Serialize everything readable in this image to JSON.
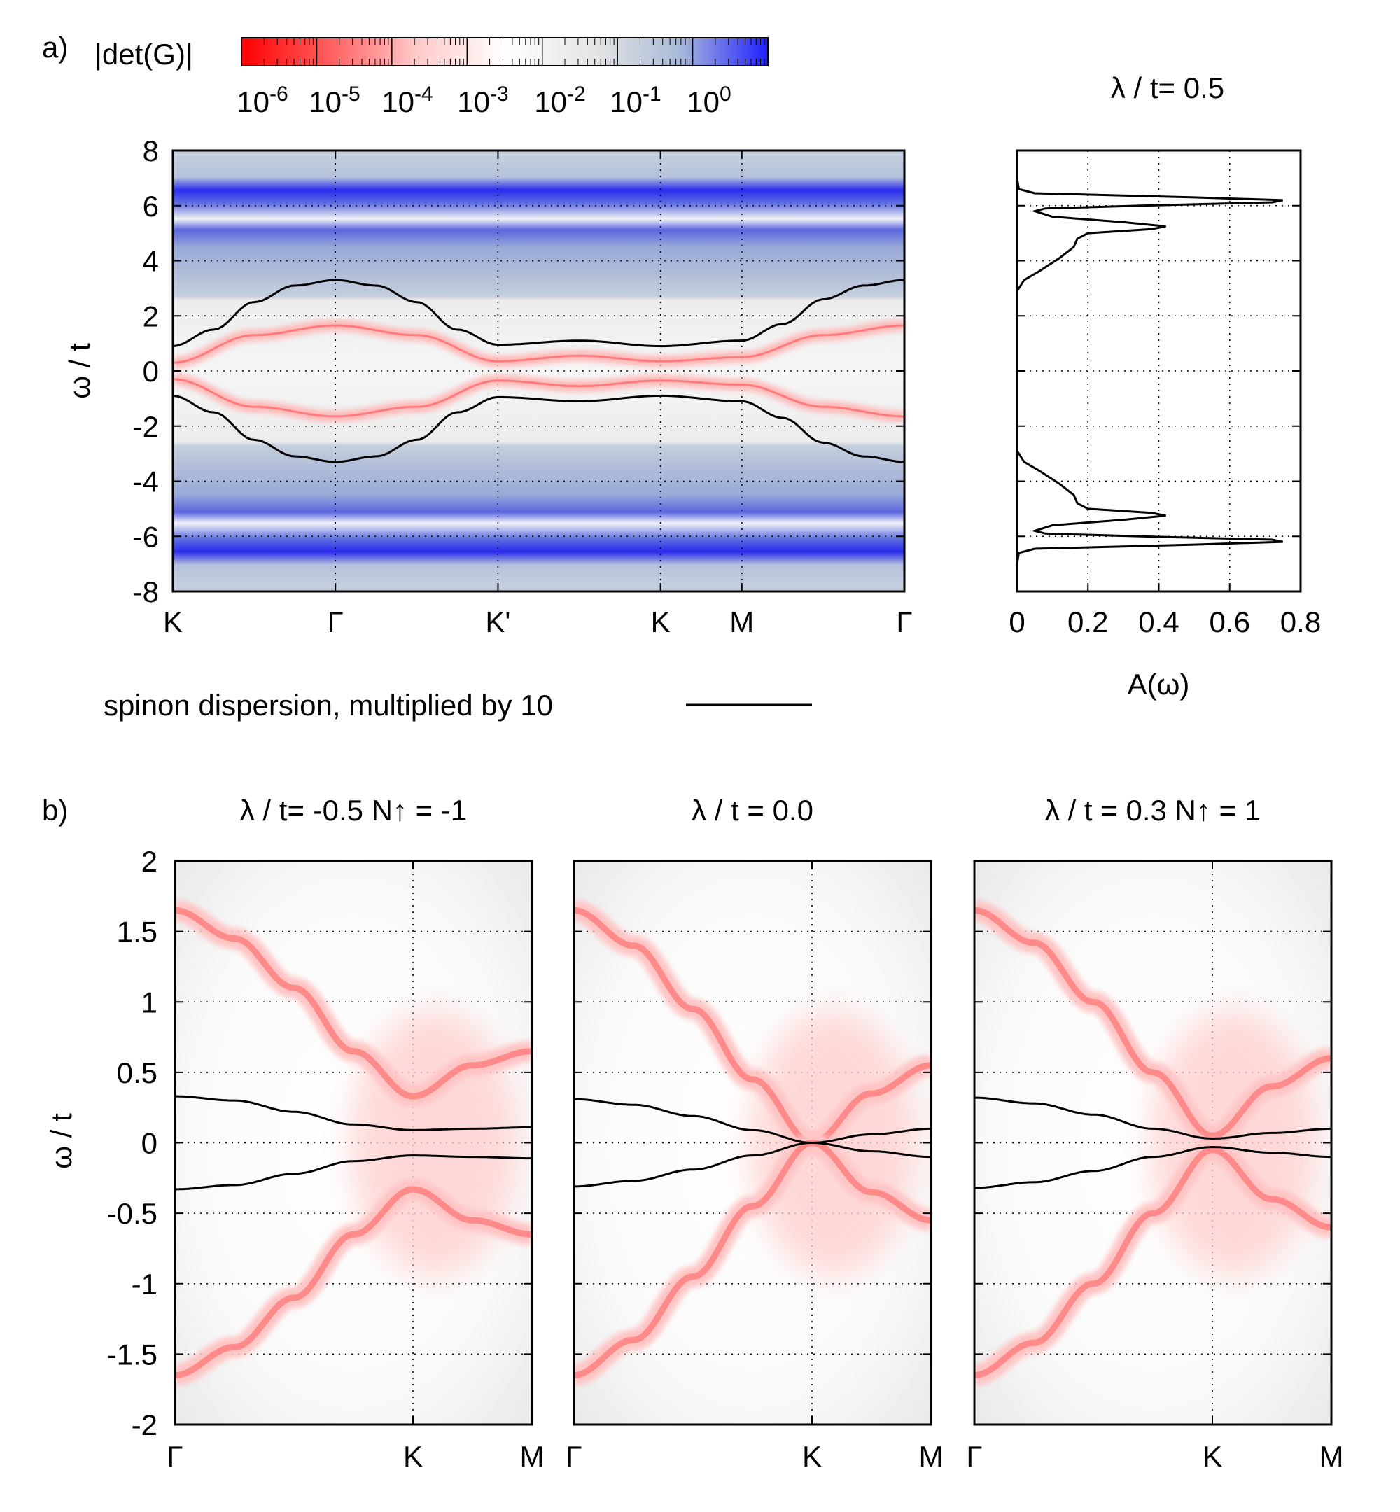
{
  "panel_a": {
    "label": "a)",
    "colorbar": {
      "title": "|det(G)|",
      "ticks": [
        "10^-6",
        "10^-5",
        "10^-4",
        "10^-3",
        "10^-2",
        "10^-1",
        "10^0"
      ],
      "colors": [
        "#ff0000",
        "#ff8080",
        "#ffe0e0",
        "#ffffff",
        "#e6e6e6",
        "#b4c4dc",
        "#2a2aff"
      ]
    },
    "legend": "spinon dispersion, multiplied by 10",
    "right_title": "λ / t= 0.5"
  },
  "panel_b": {
    "label": "b)"
  },
  "chart_data": [
    {
      "id": "a-band",
      "type": "heatmap",
      "title": "",
      "ylabel": "ω / t",
      "ylim": [
        -8,
        8
      ],
      "yticks": [
        -8,
        -6,
        -4,
        -2,
        0,
        2,
        4,
        6,
        8
      ],
      "xticks": [
        "K",
        "Γ",
        "K'",
        "K",
        "M",
        "Γ"
      ],
      "xtick_pos": [
        0,
        1,
        2,
        3,
        3.5,
        4.5
      ],
      "xlim": [
        0,
        4.5
      ],
      "grid": true,
      "series": [
        {
          "name": "spinon dispersion x10 (upper)",
          "x": [
            0,
            0.25,
            0.5,
            0.75,
            1,
            1.25,
            1.5,
            1.75,
            2,
            2.5,
            3,
            3.5,
            3.75,
            4,
            4.25,
            4.5
          ],
          "values": [
            0.9,
            1.5,
            2.5,
            3.1,
            3.3,
            3.1,
            2.5,
            1.5,
            0.95,
            1.1,
            0.9,
            1.1,
            1.7,
            2.6,
            3.1,
            3.3
          ]
        },
        {
          "name": "spinon dispersion x10 (lower)",
          "x": [
            0,
            0.25,
            0.5,
            0.75,
            1,
            1.25,
            1.5,
            1.75,
            2,
            2.5,
            3,
            3.5,
            3.75,
            4,
            4.25,
            4.5
          ],
          "values": [
            -0.9,
            -1.5,
            -2.5,
            -3.1,
            -3.3,
            -3.1,
            -2.5,
            -1.5,
            -0.95,
            -1.1,
            -0.9,
            -1.1,
            -1.7,
            -2.6,
            -3.1,
            -3.3
          ]
        },
        {
          "name": "red band upper",
          "x": [
            0,
            0.5,
            1,
            1.5,
            2,
            2.5,
            3,
            3.5,
            4,
            4.5
          ],
          "values": [
            0.3,
            1.3,
            1.65,
            1.3,
            0.35,
            0.55,
            0.35,
            0.5,
            1.3,
            1.65
          ]
        },
        {
          "name": "red band lower",
          "x": [
            0,
            0.5,
            1,
            1.5,
            2,
            2.5,
            3,
            3.5,
            4,
            4.5
          ],
          "values": [
            -0.3,
            -1.3,
            -1.65,
            -1.3,
            -0.35,
            -0.55,
            -0.35,
            -0.5,
            -1.3,
            -1.65
          ]
        }
      ]
    },
    {
      "id": "a-dos",
      "type": "line",
      "title": "λ / t= 0.5",
      "xlabel": "A(ω)",
      "xlim": [
        0,
        0.8
      ],
      "ylim": [
        -8,
        8
      ],
      "xticks": [
        0,
        0.2,
        0.4,
        0.6,
        0.8
      ],
      "grid": true,
      "series": [
        {
          "name": "A(ω)",
          "w": [
            -8,
            -7,
            -6.6,
            -6.45,
            -6.3,
            -6.2,
            -6.12,
            -6.0,
            -5.9,
            -5.8,
            -5.6,
            -5.4,
            -5.25,
            -5.15,
            -5.0,
            -4.8,
            -4.5,
            -4.1,
            -3.6,
            -3.3,
            -3.0,
            -2.9,
            -2.8,
            0,
            2.8,
            2.9,
            3.0,
            3.3,
            3.6,
            4.1,
            4.5,
            4.8,
            5.0,
            5.15,
            5.25,
            5.4,
            5.6,
            5.8,
            5.9,
            6.0,
            6.12,
            6.2,
            6.3,
            6.45,
            6.6,
            7,
            8
          ],
          "values": [
            0,
            0,
            0.005,
            0.05,
            0.5,
            0.75,
            0.72,
            0.35,
            0.08,
            0.05,
            0.1,
            0.3,
            0.42,
            0.38,
            0.2,
            0.17,
            0.16,
            0.12,
            0.06,
            0.02,
            0.005,
            0,
            0,
            0,
            0,
            0,
            0.005,
            0.02,
            0.06,
            0.12,
            0.16,
            0.17,
            0.2,
            0.38,
            0.42,
            0.3,
            0.1,
            0.05,
            0.08,
            0.35,
            0.72,
            0.75,
            0.5,
            0.05,
            0.005,
            0,
            0
          ]
        }
      ]
    },
    {
      "id": "b1",
      "type": "heatmap",
      "title": "λ / t= -0.5   N↑ = -1",
      "ylabel": "ω / t",
      "ylim": [
        -2,
        2
      ],
      "yticks": [
        "-2",
        "-1.5",
        "-1",
        "-0.5",
        "0",
        "0.5",
        "1",
        "1.5",
        "2"
      ],
      "xticks": [
        "Γ",
        "K",
        "M"
      ],
      "xtick_pos": [
        0,
        2,
        3
      ],
      "xlim": [
        0,
        3
      ],
      "gap": 0.35,
      "spinon_end": 0.11,
      "band_end": 0.65,
      "series": [
        {
          "name": "red band upper",
          "x": [
            0,
            0.5,
            1,
            1.5,
            2,
            2.5,
            3
          ],
          "values": [
            1.65,
            1.45,
            1.1,
            0.65,
            0.33,
            0.55,
            0.65
          ]
        },
        {
          "name": "red band lower",
          "x": [
            0,
            0.5,
            1,
            1.5,
            2,
            2.5,
            3
          ],
          "values": [
            -1.65,
            -1.45,
            -1.1,
            -0.65,
            -0.33,
            -0.55,
            -0.65
          ]
        },
        {
          "name": "spinon upper",
          "x": [
            0,
            0.5,
            1,
            1.5,
            2,
            2.5,
            3
          ],
          "values": [
            0.33,
            0.3,
            0.22,
            0.13,
            0.09,
            0.1,
            0.11
          ]
        },
        {
          "name": "spinon lower",
          "x": [
            0,
            0.5,
            1,
            1.5,
            2,
            2.5,
            3
          ],
          "values": [
            -0.33,
            -0.3,
            -0.22,
            -0.13,
            -0.09,
            -0.1,
            -0.11
          ]
        }
      ]
    },
    {
      "id": "b2",
      "type": "heatmap",
      "title": "λ / t = 0.0",
      "ylim": [
        -2,
        2
      ],
      "xticks": [
        "Γ",
        "K",
        "M"
      ],
      "xtick_pos": [
        0,
        2,
        3
      ],
      "xlim": [
        0,
        3
      ],
      "series": [
        {
          "name": "red band upper",
          "x": [
            0,
            0.5,
            1,
            1.5,
            2,
            2.5,
            3
          ],
          "values": [
            1.65,
            1.4,
            0.95,
            0.45,
            0.0,
            0.35,
            0.55
          ]
        },
        {
          "name": "red band lower",
          "x": [
            0,
            0.5,
            1,
            1.5,
            2,
            2.5,
            3
          ],
          "values": [
            -1.65,
            -1.4,
            -0.95,
            -0.45,
            0.0,
            -0.35,
            -0.55
          ]
        },
        {
          "name": "spinon upper",
          "x": [
            0,
            0.5,
            1,
            1.5,
            2,
            2.5,
            3
          ],
          "values": [
            0.31,
            0.27,
            0.19,
            0.09,
            0.0,
            0.06,
            0.1
          ]
        },
        {
          "name": "spinon lower",
          "x": [
            0,
            0.5,
            1,
            1.5,
            2,
            2.5,
            3
          ],
          "values": [
            -0.31,
            -0.27,
            -0.19,
            -0.09,
            0.0,
            -0.06,
            -0.1
          ]
        }
      ]
    },
    {
      "id": "b3",
      "type": "heatmap",
      "title": "λ / t = 0.3   N↑ = 1",
      "ylim": [
        -2,
        2
      ],
      "xticks": [
        "Γ",
        "K",
        "M"
      ],
      "xtick_pos": [
        0,
        2,
        3
      ],
      "xlim": [
        0,
        3
      ],
      "series": [
        {
          "name": "red band upper",
          "x": [
            0,
            0.5,
            1,
            1.5,
            2,
            2.5,
            3
          ],
          "values": [
            1.65,
            1.42,
            1.0,
            0.5,
            0.05,
            0.4,
            0.6
          ]
        },
        {
          "name": "red band lower",
          "x": [
            0,
            0.5,
            1,
            1.5,
            2,
            2.5,
            3
          ],
          "values": [
            -1.65,
            -1.42,
            -1.0,
            -0.5,
            -0.05,
            -0.4,
            -0.6
          ]
        },
        {
          "name": "spinon upper",
          "x": [
            0,
            0.5,
            1,
            1.5,
            2,
            2.5,
            3
          ],
          "values": [
            0.32,
            0.28,
            0.2,
            0.1,
            0.03,
            0.07,
            0.1
          ]
        },
        {
          "name": "spinon lower",
          "x": [
            0,
            0.5,
            1,
            1.5,
            2,
            2.5,
            3
          ],
          "values": [
            -0.32,
            -0.28,
            -0.2,
            -0.1,
            -0.03,
            -0.07,
            -0.1
          ]
        }
      ]
    }
  ]
}
